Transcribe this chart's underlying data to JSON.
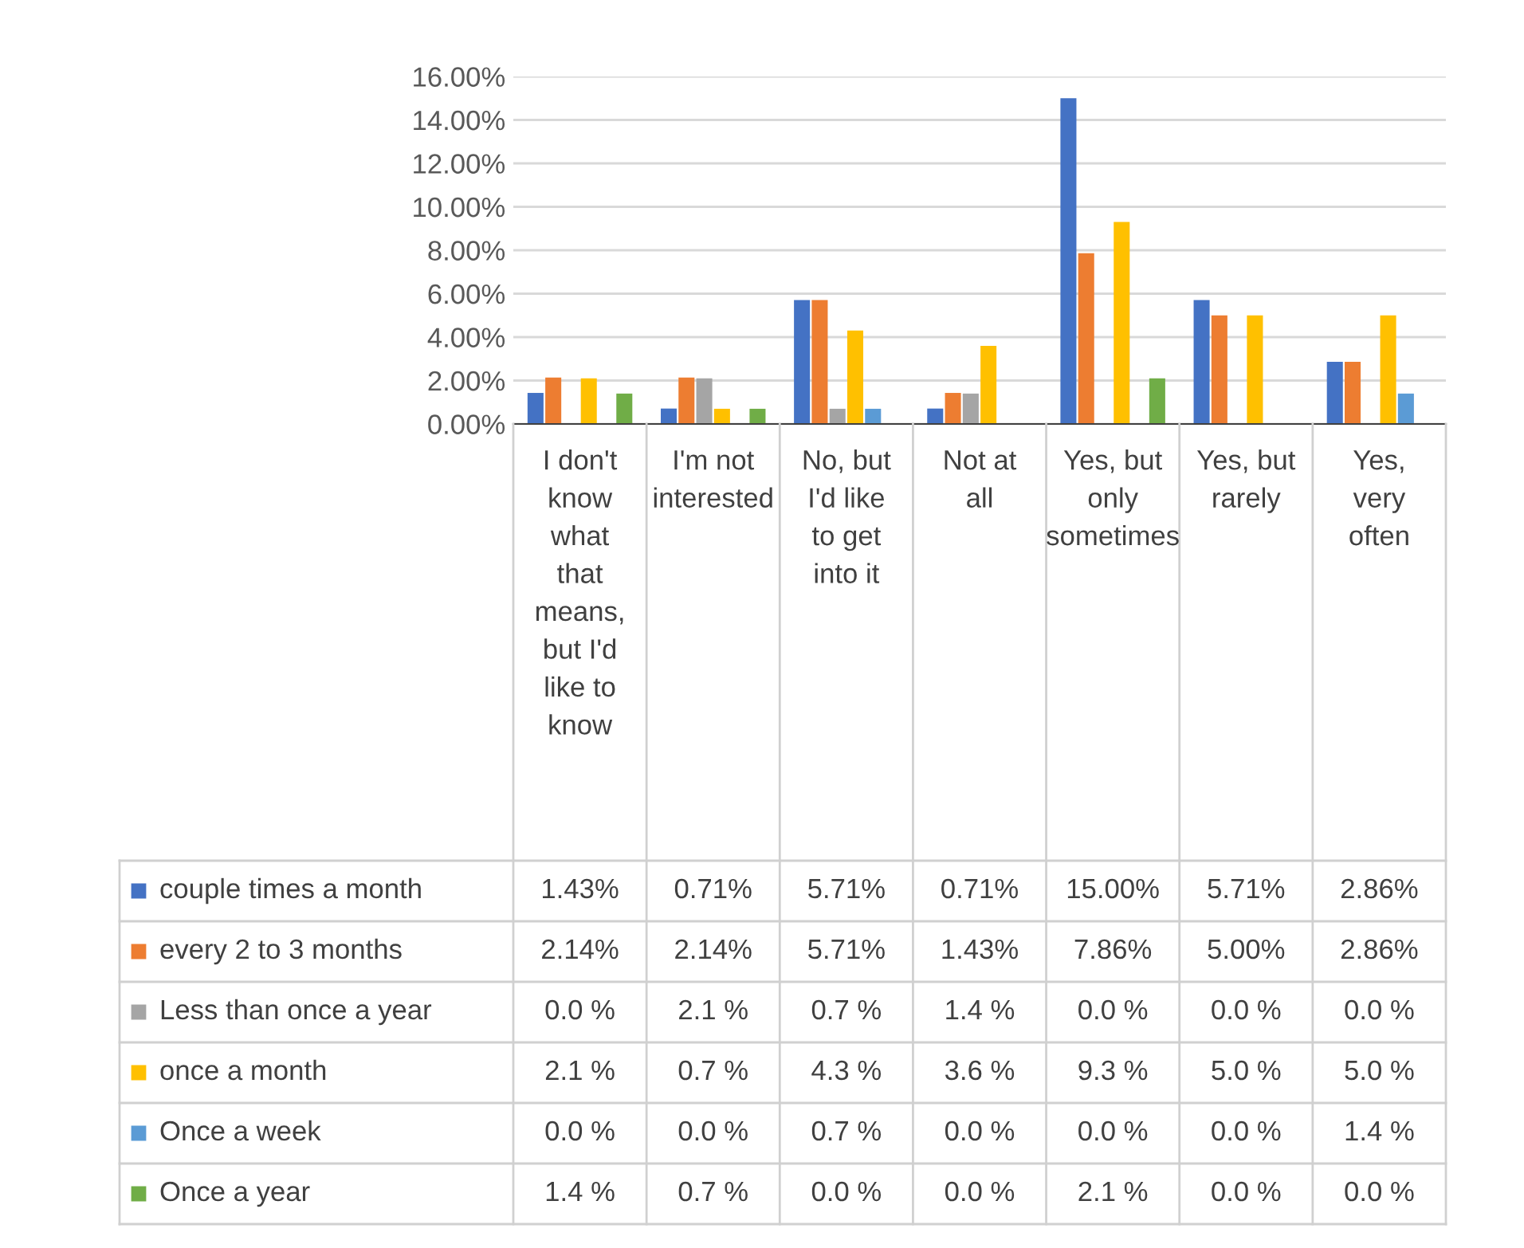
{
  "chart_data": {
    "type": "bar",
    "categories": [
      "I don't know what that means, but I'd like to know",
      "I'm not interested",
      "No, but I'd like to get into it",
      "Not at all",
      "Yes, but only sometimes",
      "Yes, but rarely",
      "Yes, very often"
    ],
    "series": [
      {
        "name": "couple times a month",
        "color": "#4472c4",
        "values": [
          1.43,
          0.71,
          5.71,
          0.71,
          15.0,
          5.71,
          2.86
        ],
        "value_labels": [
          "1.43%",
          "0.71%",
          "5.71%",
          "0.71%",
          "15.00%",
          "5.71%",
          "2.86%"
        ]
      },
      {
        "name": "every 2 to 3 months",
        "color": "#ed7d31",
        "values": [
          2.14,
          2.14,
          5.71,
          1.43,
          7.86,
          5.0,
          2.86
        ],
        "value_labels": [
          "2.14%",
          "2.14%",
          "5.71%",
          "1.43%",
          "7.86%",
          "5.00%",
          "2.86%"
        ]
      },
      {
        "name": "Less than once a year",
        "color": "#a5a5a5",
        "values": [
          0.0,
          2.1,
          0.7,
          1.4,
          0.0,
          0.0,
          0.0
        ],
        "value_labels": [
          "0.0 %",
          "2.1 %",
          "0.7 %",
          "1.4 %",
          "0.0 %",
          "0.0 %",
          "0.0 %"
        ]
      },
      {
        "name": "once a month",
        "color": "#ffc000",
        "values": [
          2.1,
          0.7,
          4.3,
          3.6,
          9.3,
          5.0,
          5.0
        ],
        "value_labels": [
          "2.1 %",
          "0.7 %",
          "4.3 %",
          "3.6 %",
          "9.3 %",
          "5.0 %",
          "5.0 %"
        ]
      },
      {
        "name": "Once a week",
        "color": "#5b9bd5",
        "values": [
          0.0,
          0.0,
          0.7,
          0.0,
          0.0,
          0.0,
          1.4
        ],
        "value_labels": [
          "0.0 %",
          "0.0 %",
          "0.7 %",
          "0.0 %",
          "0.0 %",
          "0.0 %",
          "1.4 %"
        ]
      },
      {
        "name": "Once a year",
        "color": "#70ad47",
        "values": [
          1.4,
          0.7,
          0.0,
          0.0,
          2.1,
          0.0,
          0.0
        ],
        "value_labels": [
          "1.4 %",
          "0.7 %",
          "0.0 %",
          "0.0 %",
          "2.1 %",
          "0.0 %",
          "0.0 %"
        ]
      }
    ],
    "ylim": [
      0,
      16
    ],
    "yticks": [
      {
        "value": 0,
        "label": "0.00%"
      },
      {
        "value": 2,
        "label": "2.00%"
      },
      {
        "value": 4,
        "label": "4.00%"
      },
      {
        "value": 6,
        "label": "6.00%"
      },
      {
        "value": 8,
        "label": "8.00%"
      },
      {
        "value": 10,
        "label": "10.00%"
      },
      {
        "value": 12,
        "label": "12.00%"
      },
      {
        "value": 14,
        "label": "14.00%"
      },
      {
        "value": 16,
        "label": "16.00%"
      }
    ],
    "grid": "y",
    "legend": "bottom"
  }
}
